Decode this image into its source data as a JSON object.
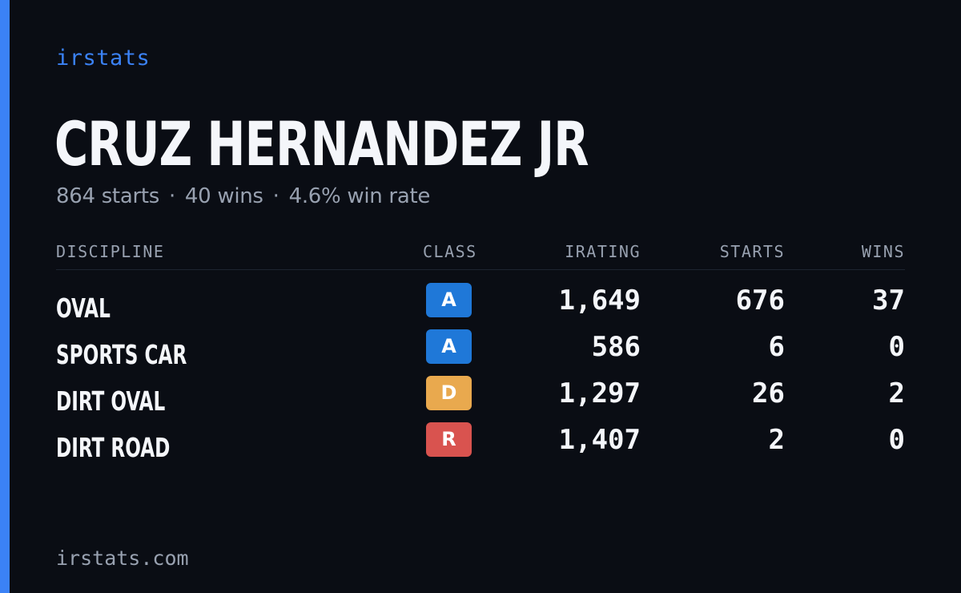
{
  "colors": {
    "accent": "#3b82f6",
    "background": "#0a0d14",
    "text_primary": "#f4f6fa",
    "text_muted": "#98a1b0",
    "class_a": "#1f78d8",
    "class_d": "#e9a94e",
    "class_r": "#d9534f"
  },
  "brand": "irstats",
  "driver": {
    "name": "CRUZ HERNANDEZ JR",
    "starts_text": "864 starts",
    "wins_text": "40 wins",
    "win_rate_text": "4.6% win rate",
    "separator": "·"
  },
  "table": {
    "headers": {
      "discipline": "DISCIPLINE",
      "class": "CLASS",
      "irating": "IRATING",
      "starts": "STARTS",
      "wins": "WINS"
    },
    "rows": [
      {
        "discipline": "OVAL",
        "class": "A",
        "class_color": "#1f78d8",
        "irating": "1,649",
        "starts": "676",
        "wins": "37"
      },
      {
        "discipline": "SPORTS CAR",
        "class": "A",
        "class_color": "#1f78d8",
        "irating": "586",
        "starts": "6",
        "wins": "0"
      },
      {
        "discipline": "DIRT OVAL",
        "class": "D",
        "class_color": "#e9a94e",
        "irating": "1,297",
        "starts": "26",
        "wins": "2"
      },
      {
        "discipline": "DIRT ROAD",
        "class": "R",
        "class_color": "#d9534f",
        "irating": "1,407",
        "starts": "2",
        "wins": "0"
      }
    ]
  },
  "footer": "irstats.com"
}
